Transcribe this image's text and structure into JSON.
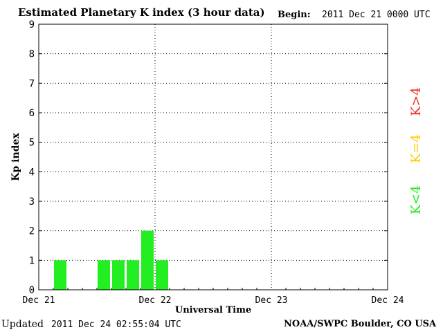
{
  "header": {
    "title": "Estimated Planetary K index (3 hour data)",
    "begin_label": "Begin:",
    "begin_value": "2011 Dec 21 0000 UTC"
  },
  "footer": {
    "updated_label": "Updated",
    "updated_value": "2011 Dec 24 02:55:04 UTC",
    "source": "NOAA/SWPC Boulder, CO USA"
  },
  "legend": {
    "high": "K>4",
    "mid": "K=4",
    "low": "K<4"
  },
  "colors": {
    "low": "#22ee22",
    "mid": "#ffcc00",
    "high": "#ee3322",
    "grid": "#000000"
  },
  "chart_data": {
    "type": "bar",
    "title": "Estimated Planetary K index (3 hour data)",
    "xlabel": "Universal Time",
    "ylabel": "Kp index",
    "ylim": [
      0,
      9
    ],
    "yticks": [
      "0",
      "1",
      "2",
      "3",
      "4",
      "5",
      "6",
      "7",
      "8",
      "9"
    ],
    "xticks": [
      "Dec 21",
      "Dec 22",
      "Dec 23",
      "Dec 24"
    ],
    "grid": true,
    "bin_hours": 3,
    "x": [
      "Dec 21 03:00",
      "Dec 21 06:00",
      "Dec 21 09:00",
      "Dec 21 12:00",
      "Dec 21 15:00",
      "Dec 21 18:00",
      "Dec 21 21:00",
      "Dec 22 00:00"
    ],
    "values": [
      1,
      0,
      0,
      1,
      1,
      1,
      2,
      1
    ]
  }
}
